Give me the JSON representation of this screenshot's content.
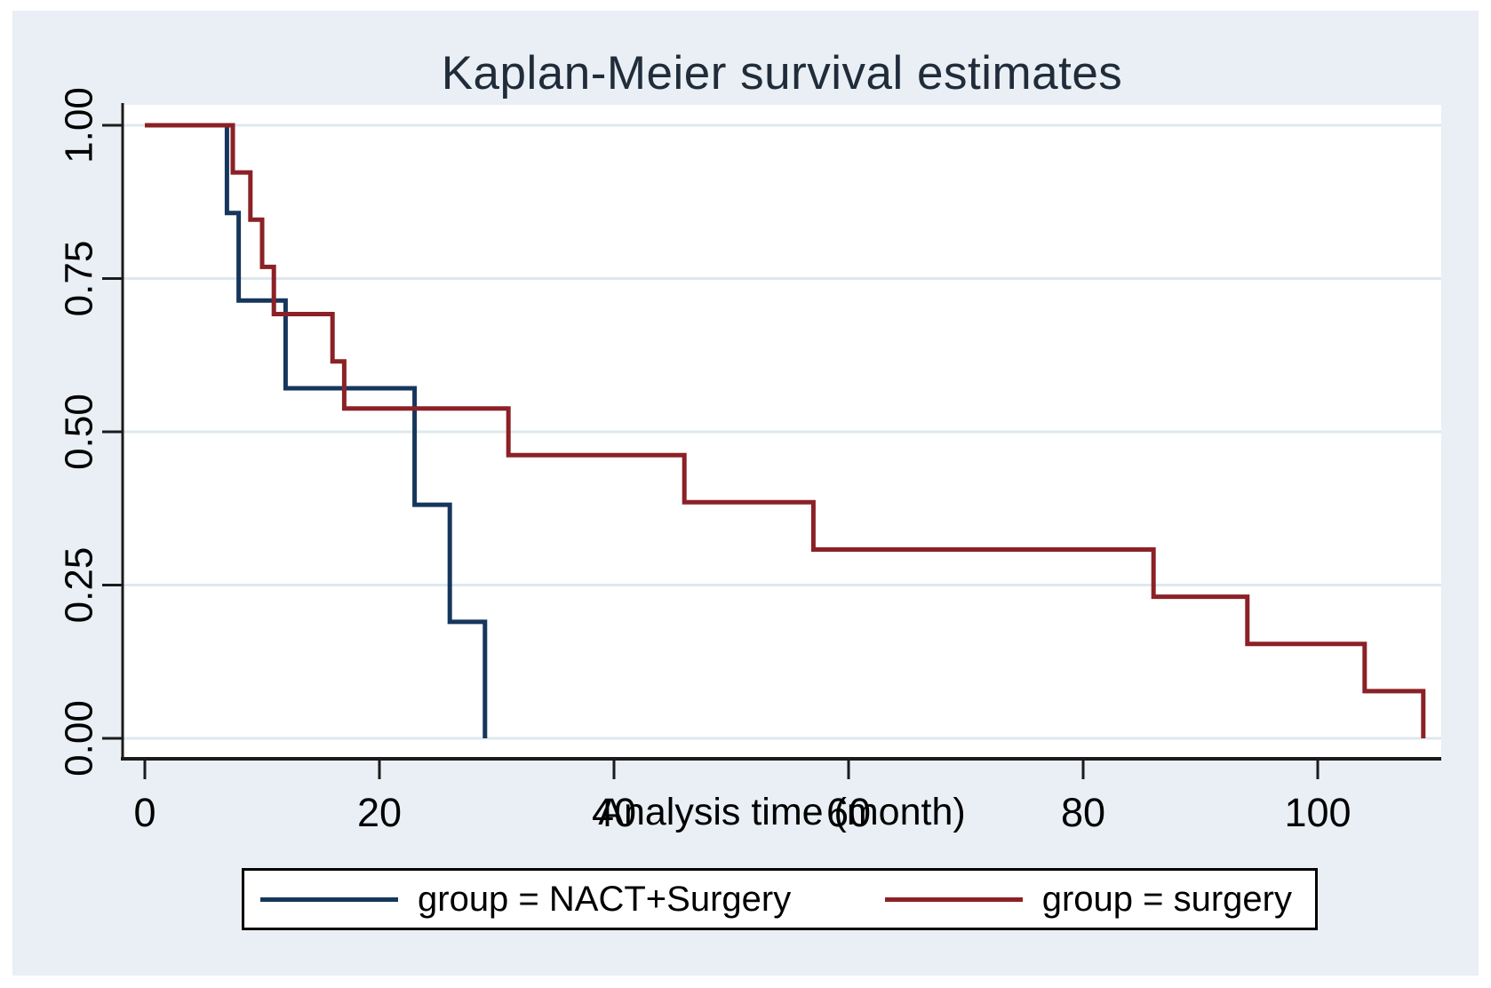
{
  "figure": {
    "title": "Kaplan-Meier survival estimates",
    "xlabel": "Analysis time (month)"
  },
  "legend": {
    "items": [
      {
        "label": "group = NACT+Surgery",
        "color": "#16365c"
      },
      {
        "label": "group = surgery",
        "color": "#8b2126"
      }
    ]
  },
  "colors": {
    "panel_background": "#e9eff4",
    "plot_background": "#ffffff",
    "gridline": "#dde9ee",
    "axis": "#1b1b1b",
    "title_text": "#202c3a",
    "tick_text": "#000000",
    "navy_series": "#16365c",
    "maroon_series": "#8b2126"
  },
  "chart_data": {
    "type": "line",
    "subtype": "kaplan-meier-step",
    "title": "Kaplan-Meier survival estimates",
    "xlabel": "Analysis time (month)",
    "ylabel": "",
    "xlim": [
      0,
      110.5
    ],
    "ylim": [
      0,
      1
    ],
    "xticks": [
      0,
      20,
      40,
      60,
      80,
      100
    ],
    "ytick_labels": [
      "0.00",
      "0.25",
      "0.50",
      "0.75",
      "1.00"
    ],
    "grid": "horizontal",
    "legend_position": "bottom",
    "series": [
      {
        "name": "group = NACT+Surgery",
        "color": "#16365c",
        "points": [
          [
            0,
            1.0
          ],
          [
            7,
            1.0
          ],
          [
            7,
            0.857
          ],
          [
            8,
            0.857
          ],
          [
            8,
            0.714
          ],
          [
            12,
            0.714
          ],
          [
            12,
            0.571
          ],
          [
            23,
            0.571
          ],
          [
            23,
            0.381
          ],
          [
            26,
            0.381
          ],
          [
            26,
            0.19
          ],
          [
            29,
            0.19
          ],
          [
            29,
            0.0
          ]
        ]
      },
      {
        "name": "group = surgery",
        "color": "#8b2126",
        "points": [
          [
            0,
            1.0
          ],
          [
            7.5,
            1.0
          ],
          [
            7.5,
            0.923
          ],
          [
            9,
            0.923
          ],
          [
            9,
            0.846
          ],
          [
            10,
            0.846
          ],
          [
            10,
            0.769
          ],
          [
            11,
            0.769
          ],
          [
            11,
            0.692
          ],
          [
            16,
            0.692
          ],
          [
            16,
            0.615
          ],
          [
            17,
            0.615
          ],
          [
            17,
            0.538
          ],
          [
            31,
            0.538
          ],
          [
            31,
            0.462
          ],
          [
            46,
            0.462
          ],
          [
            46,
            0.385
          ],
          [
            57,
            0.385
          ],
          [
            57,
            0.308
          ],
          [
            86,
            0.308
          ],
          [
            86,
            0.231
          ],
          [
            94,
            0.231
          ],
          [
            94,
            0.154
          ],
          [
            104,
            0.154
          ],
          [
            104,
            0.077
          ],
          [
            109,
            0.077
          ],
          [
            109,
            0.0
          ]
        ]
      }
    ]
  }
}
